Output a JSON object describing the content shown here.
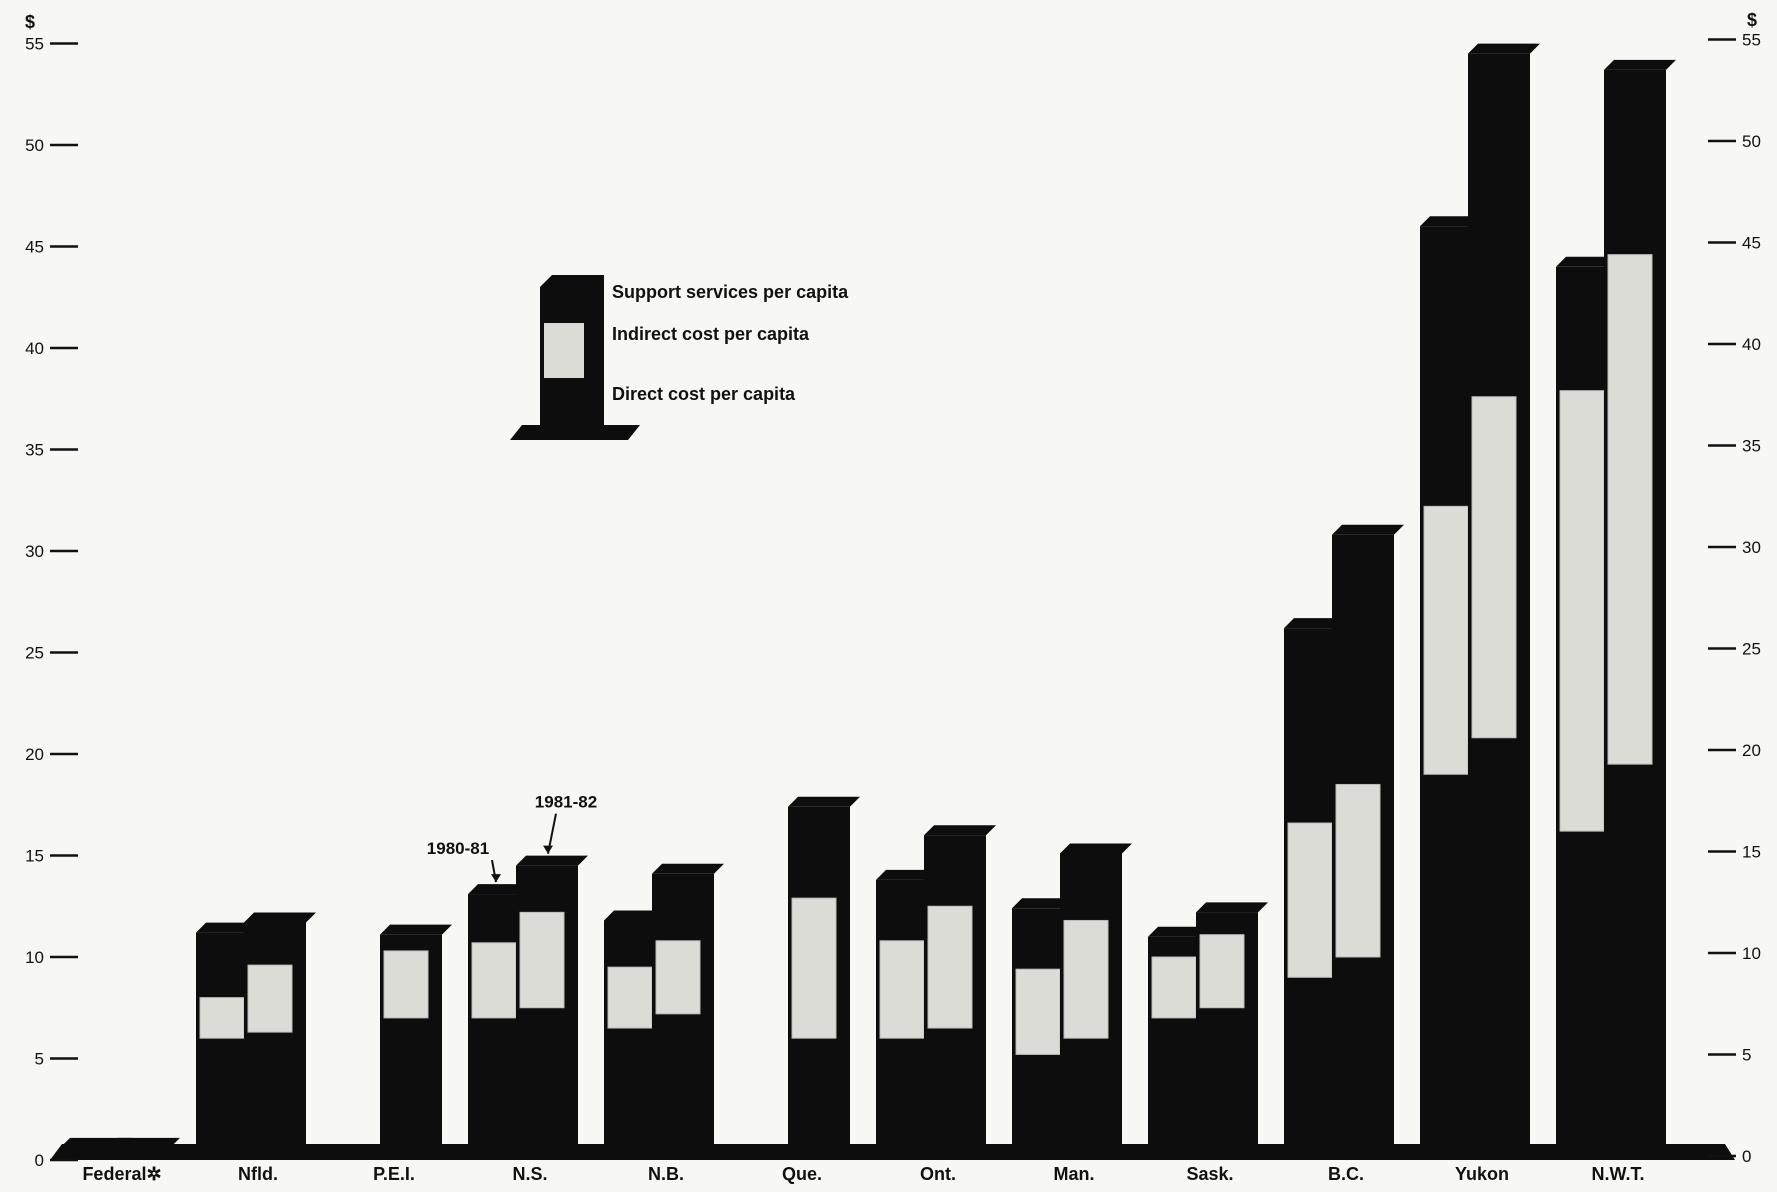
{
  "chart_data": {
    "type": "bar",
    "stacked": true,
    "grouped": true,
    "unit": "$",
    "ylim": [
      0,
      55
    ],
    "yticks": [
      0,
      5,
      10,
      15,
      20,
      25,
      30,
      35,
      40,
      45,
      50,
      55
    ],
    "grid": false,
    "categories": [
      "Federal✲",
      "Nfld.",
      "P.E.I.",
      "N.S.",
      "N.B.",
      "Que.",
      "Ont.",
      "Man.",
      "Sask.",
      "B.C.",
      "Yukon",
      "N.W.T."
    ],
    "years": [
      "1980-81",
      "1981-82"
    ],
    "stack_order": [
      "Direct cost per capita",
      "Indirect cost per capita",
      "Support services per capita"
    ],
    "legend_position": "upper-left-center",
    "series": [
      {
        "name": "Direct cost per capita",
        "year_values": {
          "1980-81": [
            0.6,
            6.0,
            0,
            7.0,
            6.5,
            0,
            6.0,
            5.2,
            7.0,
            9.0,
            19.0,
            16.2
          ],
          "1981-82": [
            0.6,
            6.3,
            7.0,
            7.5,
            7.2,
            6.0,
            6.5,
            6.0,
            7.5,
            10.0,
            20.8,
            19.5
          ]
        }
      },
      {
        "name": "Indirect cost per capita",
        "year_values": {
          "1980-81": [
            0,
            2.0,
            0,
            3.7,
            3.0,
            0,
            4.8,
            4.2,
            3.0,
            7.6,
            13.2,
            21.7
          ],
          "1981-82": [
            0,
            3.3,
            3.3,
            4.7,
            3.6,
            6.9,
            6.0,
            5.8,
            3.6,
            8.5,
            16.8,
            25.1
          ]
        }
      },
      {
        "name": "Support services per capita",
        "year_values": {
          "1980-81": [
            0,
            3.2,
            0,
            2.4,
            2.3,
            0,
            3.0,
            3.0,
            1.0,
            9.6,
            13.8,
            6.1
          ],
          "1981-82": [
            0,
            2.1,
            0.8,
            2.3,
            3.3,
            4.5,
            3.5,
            3.3,
            1.1,
            12.3,
            16.9,
            9.1
          ]
        }
      }
    ],
    "annotations": [
      {
        "text": "1980-81",
        "category": "N.S.",
        "year": "1980-81"
      },
      {
        "text": "1981-82",
        "category": "N.S.",
        "year": "1981-82"
      }
    ]
  },
  "colors": {
    "background": "#f7f7f4",
    "direct": "#0d0d0d",
    "indirect": "#dcdcd6",
    "support": "#0d0d0d",
    "floor": "#0d0d0d"
  }
}
